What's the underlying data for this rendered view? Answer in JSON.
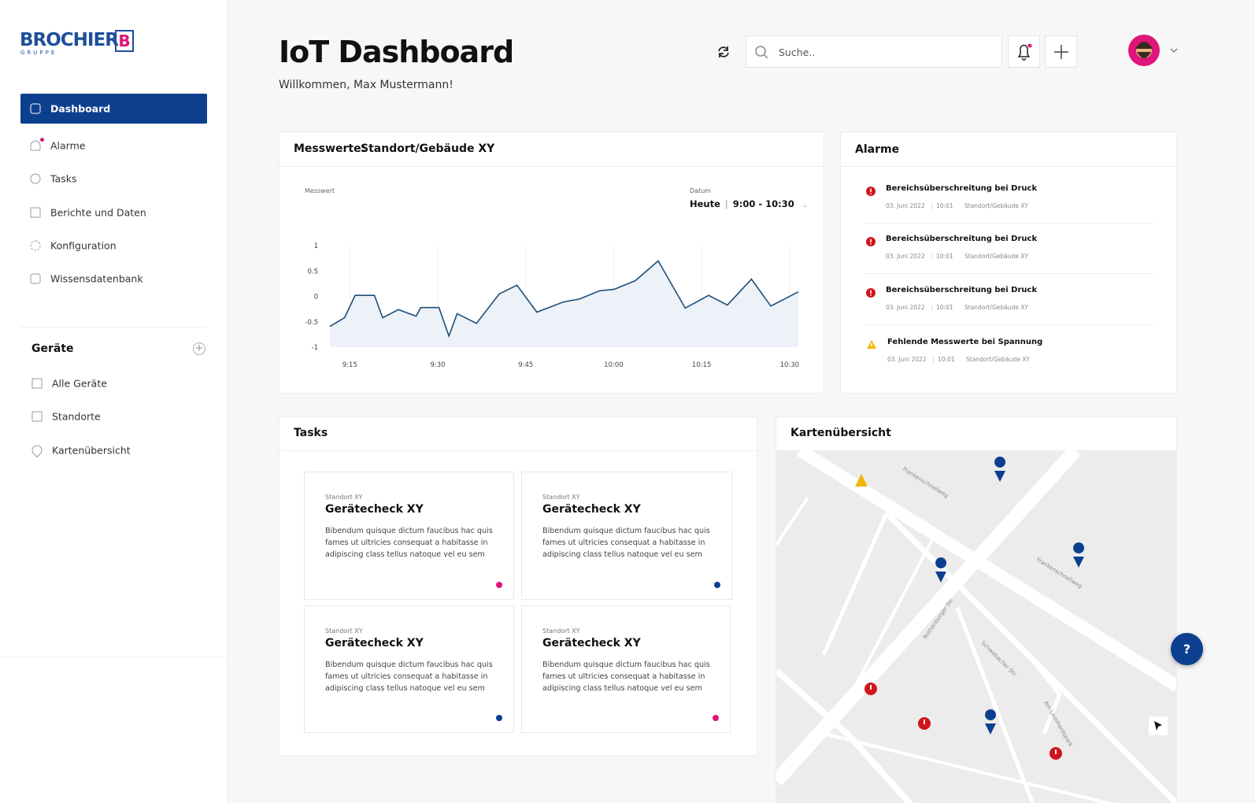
{
  "sidebar": {
    "logo": {
      "name": "BROCHIER",
      "sub": "GRUPPE",
      "mark": "B"
    },
    "nav": [
      {
        "label": "Dashboard",
        "active": true
      },
      {
        "label": "Alarme",
        "active": false
      },
      {
        "label": "Tasks",
        "active": false
      },
      {
        "label": "Berichte und Daten",
        "active": false
      },
      {
        "label": "Konfiguration",
        "active": false
      },
      {
        "label": "Wissensdatenbank",
        "active": false
      }
    ],
    "devices": {
      "title": "Geräte",
      "items": [
        "Alle Geräte",
        "Standorte",
        "Kartenübersicht"
      ]
    }
  },
  "header": {
    "title": "IoT Dashboard",
    "subtitle": "Willkommen, Max Mustermann!",
    "search_placeholder": "Suche.."
  },
  "measurements": {
    "label": "Messwerte:",
    "location": "Standort/Gebäude XY",
    "date_label": "Datum",
    "date_day": "Heute",
    "date_range": "9:00 - 10:30"
  },
  "chart_data": {
    "type": "line",
    "ylabel": "Messwert",
    "color": "#1f4e79",
    "fill": "#edf1f8",
    "grid": true,
    "x": [
      551.6,
      554.1,
      555.9,
      559.2,
      560.6,
      563.3,
      566.3,
      567.1,
      570.2,
      571.9,
      573.3,
      576.6,
      580.5,
      583.5,
      586.9,
      591.4,
      594.2,
      597.6,
      600.1,
      603.7,
      607.6,
      612.2,
      616.2,
      619.4,
      623.5,
      626.8,
      631.5
    ],
    "values": [
      -0.59,
      -0.42,
      0.02,
      0.02,
      -0.42,
      -0.26,
      -0.39,
      -0.22,
      -0.22,
      -0.78,
      -0.34,
      -0.53,
      0.05,
      0.22,
      -0.31,
      -0.11,
      -0.05,
      0.11,
      0.14,
      0.31,
      0.7,
      -0.23,
      0.02,
      -0.17,
      0.34,
      -0.19,
      0.09
    ],
    "xlim": [
      551.6,
      631.5
    ],
    "xticks": [
      {
        "value": 555,
        "label": "9:15"
      },
      {
        "value": 570,
        "label": "9:30"
      },
      {
        "value": 585,
        "label": "9:45"
      },
      {
        "value": 600,
        "label": "10:00"
      },
      {
        "value": 615,
        "label": "10:15"
      },
      {
        "value": 630,
        "label": "10:30"
      }
    ],
    "ylim": [
      -1,
      1
    ],
    "yticks": [
      1,
      0.5,
      0,
      -0.5,
      -1
    ]
  },
  "alarms": {
    "title": "Alarme",
    "items": [
      {
        "title": "Bereichsüberschreitung bei Druck",
        "date": "03. Juni 2022",
        "time": "10:01",
        "location": "Standort/Gebäude XY",
        "level": "error"
      },
      {
        "title": "Bereichsüberschreitung bei Druck",
        "date": "03. Juni 2022",
        "time": "10:01",
        "location": "Standort/Gebäude XY",
        "level": "error"
      },
      {
        "title": "Bereichsüberschreitung bei Druck",
        "date": "03. Juni 2022",
        "time": "10:01",
        "location": "Standort/Gebäude XY",
        "level": "error"
      },
      {
        "title": "Fehlende Messwerte bei Spannung",
        "date": "03. Juni 2022",
        "time": "10:01",
        "location": "Standort/Gebäude XY",
        "level": "warning"
      }
    ]
  },
  "tasks": {
    "title": "Tasks",
    "items": [
      {
        "location": "Standort XY",
        "title": "Gerätecheck XY",
        "text": "Bibendum quisque dictum faucibus hac quis fames ut ultricies consequat a habitasse in adipiscing class tellus natoque vel eu sem",
        "dot": "#e0157a"
      },
      {
        "location": "Standort XY",
        "title": "Gerätecheck XY",
        "text": "Bibendum quisque dictum faucibus hac quis fames ut ultricies consequat a habitasse in adipiscing class tellus natoque vel eu sem",
        "dot": "#0d3f8f"
      },
      {
        "location": "Standort XY",
        "title": "Gerätecheck XY",
        "text": "Bibendum quisque dictum faucibus hac quis fames ut ultricies consequat a habitasse in adipiscing class tellus natoque vel eu sem",
        "dot": "#0d3f8f"
      },
      {
        "location": "Standort XY",
        "title": "Gerätecheck XY",
        "text": "Bibendum quisque dictum faucibus hac quis fames ut ultricies consequat a habitasse in adipiscing class tellus natoque vel eu sem",
        "dot": "#e0157a"
      }
    ]
  },
  "map": {
    "title": "Kartenübersicht",
    "streets": [
      "Frankenschnellweg",
      "Frankenschnellweg",
      "Rothenburger Str.",
      "Schwabacher Str.",
      "Am Leonhardspark"
    ]
  },
  "help": "?"
}
